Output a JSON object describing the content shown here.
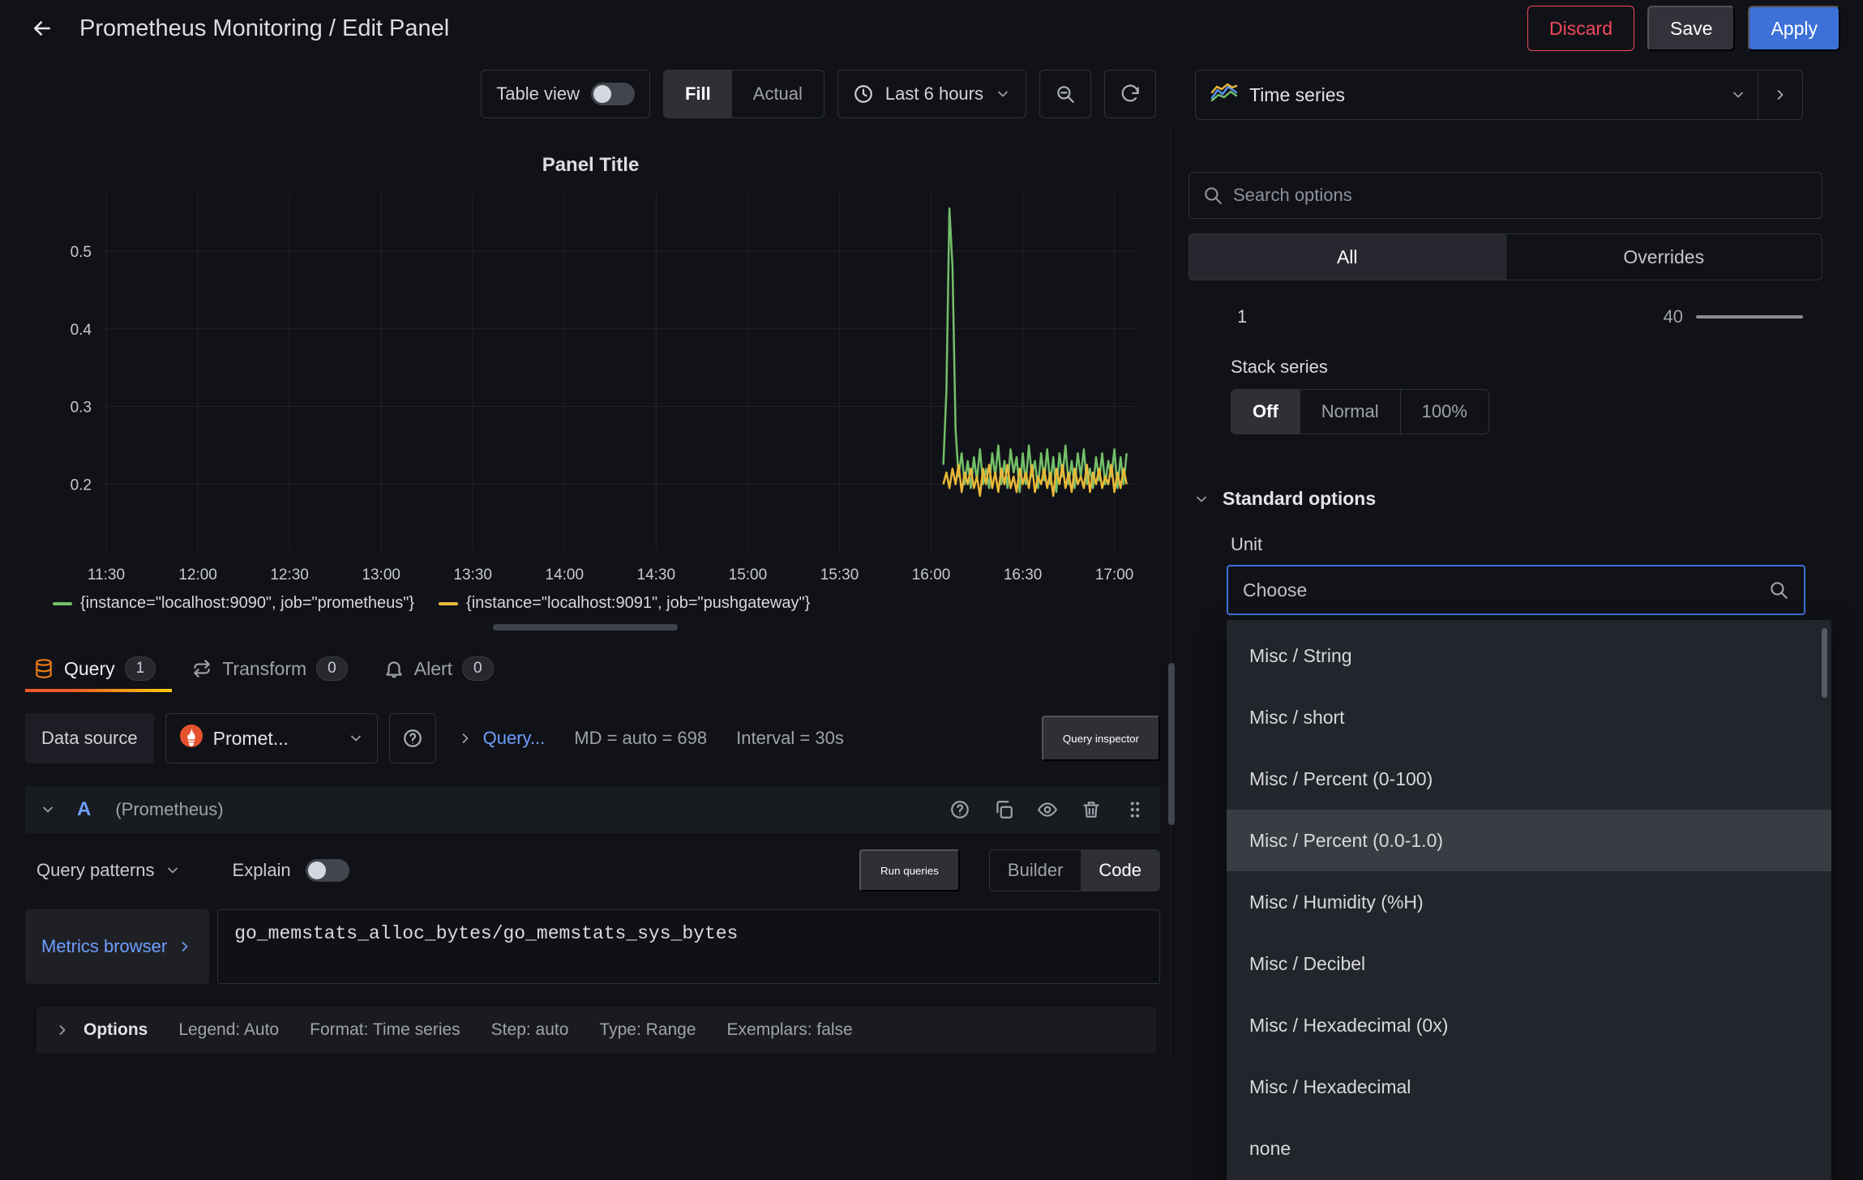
{
  "header": {
    "title": "Prometheus Monitoring / Edit Panel",
    "discard_label": "Discard",
    "save_label": "Save",
    "apply_label": "Apply"
  },
  "toolbar": {
    "table_view_label": "Table view",
    "fill_label": "Fill",
    "actual_label": "Actual",
    "time_range_label": "Last 6 hours",
    "viz_picker_label": "Time series"
  },
  "panel": {
    "title": "Panel Title"
  },
  "chart_data": {
    "type": "line",
    "title": "Panel Title",
    "x_ticks": [
      "11:30",
      "12:00",
      "12:30",
      "13:00",
      "13:30",
      "14:00",
      "14:30",
      "15:00",
      "15:30",
      "16:00",
      "16:30",
      "17:00"
    ],
    "x_range_minutes": [
      0,
      337
    ],
    "tick_interval_minutes": 30,
    "y_ticks": [
      0.5,
      0.4,
      0.3,
      0.2
    ],
    "ylim": [
      0.115,
      0.575
    ],
    "grid": true,
    "legend_position": "bottom",
    "series": [
      {
        "name": "{instance=\"localhost:9090\", job=\"prometheus\"}",
        "color": "#73bf69",
        "start_minute": 274,
        "step_minutes": 1,
        "values": [
          0.225,
          0.32,
          0.555,
          0.48,
          0.27,
          0.21,
          0.24,
          0.2,
          0.23,
          0.195,
          0.235,
          0.205,
          0.245,
          0.2,
          0.22,
          0.195,
          0.24,
          0.21,
          0.25,
          0.2,
          0.23,
          0.195,
          0.245,
          0.215,
          0.235,
          0.19,
          0.24,
          0.2,
          0.25,
          0.21,
          0.23,
          0.195,
          0.24,
          0.205,
          0.245,
          0.2,
          0.235,
          0.19,
          0.24,
          0.21,
          0.25,
          0.2,
          0.23,
          0.195,
          0.24,
          0.21,
          0.245,
          0.2,
          0.22,
          0.195,
          0.235,
          0.205,
          0.24,
          0.2,
          0.23,
          0.21,
          0.245,
          0.195,
          0.235,
          0.2,
          0.24
        ]
      },
      {
        "name": "{instance=\"localhost:9091\", job=\"pushgateway\"}",
        "color": "#eab839",
        "start_minute": 274,
        "step_minutes": 1,
        "values": [
          0.2,
          0.215,
          0.195,
          0.22,
          0.2,
          0.225,
          0.19,
          0.215,
          0.2,
          0.22,
          0.195,
          0.21,
          0.185,
          0.22,
          0.2,
          0.225,
          0.195,
          0.215,
          0.19,
          0.22,
          0.2,
          0.225,
          0.195,
          0.21,
          0.19,
          0.22,
          0.2,
          0.215,
          0.195,
          0.225,
          0.19,
          0.21,
          0.2,
          0.22,
          0.195,
          0.215,
          0.185,
          0.22,
          0.2,
          0.225,
          0.195,
          0.215,
          0.19,
          0.22,
          0.2,
          0.21,
          0.195,
          0.225,
          0.19,
          0.215,
          0.2,
          0.22,
          0.195,
          0.21,
          0.2,
          0.225,
          0.19,
          0.215,
          0.195,
          0.22,
          0.2
        ]
      }
    ]
  },
  "tabs": {
    "query": {
      "label": "Query",
      "count": "1"
    },
    "transform": {
      "label": "Transform",
      "count": "0"
    },
    "alert": {
      "label": "Alert",
      "count": "0"
    }
  },
  "query_toolbar": {
    "datasource_label": "Data source",
    "datasource_value": "Promet...",
    "query_options_label": "Query...",
    "md_info": "MD = auto = 698",
    "interval_info": "Interval = 30s",
    "inspector_label": "Query inspector"
  },
  "query_row": {
    "ref_id": "A",
    "datasource_hint": "(Prometheus)"
  },
  "query_controls": {
    "patterns_label": "Query patterns",
    "explain_label": "Explain",
    "run_label": "Run queries",
    "builder_label": "Builder",
    "code_label": "Code"
  },
  "expression": {
    "metrics_browser_label": "Metrics browser",
    "code": "go_memstats_alloc_bytes/go_memstats_sys_bytes"
  },
  "options_bar": {
    "label": "Options",
    "legend": "Legend: Auto",
    "format": "Format: Time series",
    "step": "Step: auto",
    "type": "Type: Range",
    "exemplars": "Exemplars: false"
  },
  "sidebar": {
    "search_placeholder": "Search options",
    "tab_all": "All",
    "tab_overrides": "Overrides",
    "slider_min": "1",
    "slider_max": "40",
    "stack_series_label": "Stack series",
    "stack_off": "Off",
    "stack_normal": "Normal",
    "stack_100": "100%",
    "standard_options_label": "Standard options",
    "unit_label": "Unit",
    "unit_placeholder": "Choose",
    "unit_menu_items": [
      "Misc / String",
      "Misc / short",
      "Misc / Percent (0-100)",
      "Misc / Percent (0.0-1.0)",
      "Misc / Humidity (%H)",
      "Misc / Decibel",
      "Misc / Hexadecimal (0x)",
      "Misc / Hexadecimal",
      "none"
    ],
    "unit_menu_highlighted_index": 3
  }
}
